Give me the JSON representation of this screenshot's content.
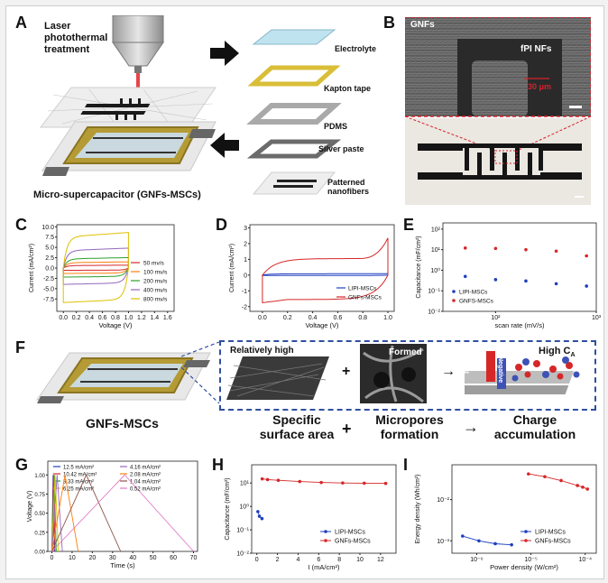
{
  "panelA": {
    "label": "A",
    "laser_text": "Laser\nphotothermal\ntreatment",
    "layers": [
      "Electrolyte",
      "Kapton tape",
      "PDMS",
      "Silver paste",
      "Patterned\nnanofibers"
    ],
    "device_caption": "Micro-supercapacitor (GNFs-MSCs)"
  },
  "panelB": {
    "label": "B",
    "tag": "GNFs",
    "inner_tag": "fPI NFs",
    "scale": "30 μm"
  },
  "panelF": {
    "label": "F",
    "device_label": "GNFs-MSCs",
    "box_texts": [
      "Relatively high",
      "Formed",
      "High C"
    ],
    "box_subscript": "A",
    "arrow_plus_label": "+",
    "arrow_right_label": "→",
    "ion_labels": [
      "Positive",
      "Negative"
    ],
    "captions": [
      "Specific\nsurface area",
      "+",
      "Micropores\nformation",
      "→",
      "Charge\naccumulation"
    ]
  },
  "colors": {
    "red": "#d62728",
    "blue": "#1f3fbf",
    "dashed_box": "#2f4fa0",
    "cv_series": [
      "#d62728",
      "#ff7f0e",
      "#2ca02c",
      "#9467bd",
      "#e0c000"
    ],
    "gcd_series": [
      "#1f3fbf",
      "#d62728",
      "#2ca02c",
      "#e0c000",
      "#9467bd",
      "#ff7f0e",
      "#8c564b",
      "#e377c2"
    ]
  },
  "chart_data": [
    {
      "id": "C",
      "label": "C",
      "type": "line",
      "xlabel": "Voltage (V)",
      "ylabel": "Current (mA/cm²)",
      "xlim": [
        -0.1,
        1.7
      ],
      "ylim": [
        -10.5,
        10.5
      ],
      "xticks": [
        "0.0",
        "0.2",
        "0.4",
        "0.6",
        "0.8",
        "1.0",
        "1.2",
        "1.4",
        "1.6"
      ],
      "yticks": [
        "-7.5",
        "-5.0",
        "-2.5",
        "0.0",
        "2.5",
        "5.0",
        "7.5",
        "10.0"
      ],
      "legend": "right",
      "series": [
        {
          "name": "50 mv/s",
          "upper": 0.6,
          "lower": -0.5
        },
        {
          "name": "100 mv/s",
          "upper": 1.3,
          "lower": -1.2
        },
        {
          "name": "200 mv/s",
          "upper": 2.2,
          "lower": -2.0
        },
        {
          "name": "400 mv/s",
          "upper": 4.2,
          "lower": -3.6
        },
        {
          "name": "800 mv/s",
          "upper": 7.5,
          "lower": -7.6
        }
      ]
    },
    {
      "id": "D",
      "label": "D",
      "type": "line",
      "xlabel": "Voltage (V)",
      "ylabel": "Current (mA/cm²)",
      "xlim": [
        -0.1,
        1.05
      ],
      "ylim": [
        -2.3,
        3.2
      ],
      "xticks": [
        "0.0",
        "0.2",
        "0.4",
        "0.6",
        "0.8",
        "1.0"
      ],
      "yticks": [
        "-2",
        "-1",
        "0",
        "1",
        "2",
        "3"
      ],
      "legend": "bottom-right",
      "series": [
        {
          "name": "LIPI-MSCs",
          "upper": 0.08,
          "lower": -0.02
        },
        {
          "name": "GNFs-MSCs",
          "upper": 1.05,
          "lower": -1.55
        }
      ]
    },
    {
      "id": "E",
      "label": "E",
      "type": "scatter",
      "xlabel": "scan rate (mV/s)",
      "ylabel": "Capacitance (mF/cm²)",
      "xscale": "log",
      "yscale": "log",
      "xlim": [
        30,
        1000
      ],
      "ylim": [
        0.01,
        200
      ],
      "xticks": [
        "10²",
        "10³"
      ],
      "yticks": [
        "10⁻²",
        "10⁻¹",
        "10⁰",
        "10¹",
        "10²"
      ],
      "legend": "bottom-left",
      "series": [
        {
          "name": "LIPI-MSCs",
          "x": [
            50,
            100,
            200,
            400,
            800
          ],
          "y": [
            0.5,
            0.35,
            0.3,
            0.22,
            0.17
          ]
        },
        {
          "name": "GNFS-MSCs",
          "x": [
            50,
            100,
            200,
            400,
            800
          ],
          "y": [
            12,
            11.5,
            10,
            8.5,
            5
          ]
        }
      ]
    },
    {
      "id": "G",
      "label": "G",
      "type": "line",
      "xlabel": "Time (s)",
      "ylabel": "Voltage (V)",
      "xlim": [
        -2,
        72
      ],
      "ylim": [
        0,
        1.18
      ],
      "xticks": [
        "0",
        "10",
        "20",
        "30",
        "40",
        "50",
        "60",
        "70"
      ],
      "yticks": [
        "0.00",
        "0.25",
        "0.50",
        "0.75",
        "1.00"
      ],
      "legend": "top",
      "series": [
        {
          "name": "12.5 mA/cm²",
          "charge_time": 0.6,
          "total": 1.2
        },
        {
          "name": "10.42 mA/cm²",
          "charge_time": 0.8,
          "total": 1.6
        },
        {
          "name": "8.33 mA/cm²",
          "charge_time": 1.1,
          "total": 2.2
        },
        {
          "name": "6.25 mA/cm²",
          "charge_time": 1.6,
          "total": 3.2
        },
        {
          "name": "4.16 mA/cm²",
          "charge_time": 2.6,
          "total": 5.2
        },
        {
          "name": "2.08 mA/cm²",
          "charge_time": 6.5,
          "total": 13
        },
        {
          "name": "1.04 mA/cm²",
          "charge_time": 17,
          "total": 34
        },
        {
          "name": "0.52 mA/cm²",
          "charge_time": 36,
          "total": 70
        }
      ]
    },
    {
      "id": "H",
      "label": "H",
      "type": "line",
      "xlabel": "I (mA/cm²)",
      "ylabel": "Capacitance (mF/cm²)",
      "yscale": "log",
      "xlim": [
        -0.5,
        13.5
      ],
      "ylim": [
        0.01,
        60
      ],
      "xticks": [
        "0",
        "2",
        "4",
        "6",
        "8",
        "10",
        "12"
      ],
      "yticks": [
        "10⁻²",
        "10⁻¹",
        "10⁰",
        "10¹"
      ],
      "legend": "bottom-right",
      "series": [
        {
          "name": "LIPI-MSCs",
          "x": [
            0.1,
            0.25,
            0.5
          ],
          "y": [
            0.6,
            0.38,
            0.3
          ]
        },
        {
          "name": "GNFs-MSCs",
          "x": [
            0.52,
            1.04,
            2.08,
            4.16,
            6.25,
            8.33,
            10.42,
            12.5
          ],
          "y": [
            15,
            14,
            13,
            11.5,
            10.5,
            10,
            9.8,
            9.6
          ]
        }
      ]
    },
    {
      "id": "I",
      "label": "I",
      "type": "line",
      "xlabel": "Power density (W/cm²)",
      "ylabel": "Energy density (Wh/cm²)",
      "xscale": "log",
      "yscale": "log",
      "xlim": [
        3.5e-07,
        0.00016
      ],
      "ylim": [
        0.0005,
        0.07
      ],
      "xticks": [
        "10⁻⁶",
        "10⁻⁵",
        "10⁻⁴"
      ],
      "yticks": [
        "10⁻³",
        "10⁻²"
      ],
      "legend": "bottom-right",
      "series": [
        {
          "name": "LIPI-MSCs",
          "x": [
            5.5e-07,
            1.1e-06,
            2.2e-06,
            4.4e-06
          ],
          "y": [
            0.0013,
            0.001,
            0.00085,
            0.0008
          ]
        },
        {
          "name": "GNFs-MSCs",
          "x": [
            9e-06,
            1.8e-05,
            3.6e-05,
            7.2e-05,
            9e-05,
            0.00011
          ],
          "y": [
            0.042,
            0.036,
            0.029,
            0.022,
            0.02,
            0.018
          ]
        }
      ]
    }
  ]
}
